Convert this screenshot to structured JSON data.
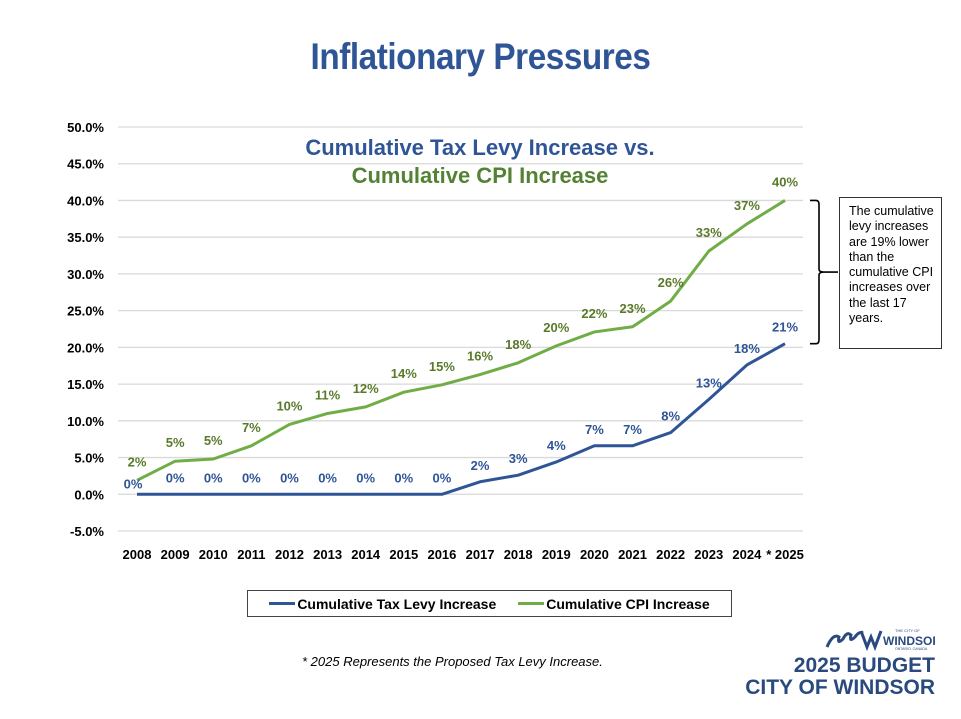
{
  "page": {
    "title": "Inflationary Pressures",
    "footnote": "* 2025 Represents the Proposed Tax Levy Increase.",
    "brand": {
      "logo_icon": "city-of-windsor-logo-icon",
      "logo_text": "WINDSOR",
      "logo_small_top": "THE CITY OF",
      "logo_small_bottom": "ONTARIO, CANADA",
      "budget_label": "2025 BUDGET",
      "city_label": "CITY OF WINDSOR"
    },
    "annotation": "The cumulative levy increases are 19% lower than the cumulative CPI increases over the last 17 years."
  },
  "colors": {
    "title": "#2f5597",
    "levy": "#2f5597",
    "cpi": "#70ad47",
    "cpi_label": "#5a7a2a",
    "grid": "#d9d9d9"
  },
  "chart_data": {
    "type": "line",
    "title_line1": "Cumulative Tax Levy Increase vs.",
    "title_line2": "Cumulative CPI Increase",
    "xlabel": "",
    "ylabel": "",
    "categories": [
      "2008",
      "2009",
      "2010",
      "2011",
      "2012",
      "2013",
      "2014",
      "2015",
      "2016",
      "2017",
      "2018",
      "2019",
      "2020",
      "2021",
      "2022",
      "2023",
      "2024",
      "* 2025"
    ],
    "ylim": [
      -5,
      50
    ],
    "yticks": [
      -5,
      0,
      5,
      10,
      15,
      20,
      25,
      30,
      35,
      40,
      45,
      50
    ],
    "ytick_labels": [
      "-5.0%",
      "0.0%",
      "5.0%",
      "10.0%",
      "15.0%",
      "20.0%",
      "25.0%",
      "30.0%",
      "35.0%",
      "40.0%",
      "45.0%",
      "50.0%"
    ],
    "grid": true,
    "legend_position": "bottom",
    "series": [
      {
        "name": "Cumulative Tax Levy Increase",
        "values": [
          0,
          0,
          0,
          0,
          0,
          0,
          0,
          0,
          0,
          1.7,
          2.6,
          4.4,
          6.6,
          6.6,
          8.4,
          12.9,
          17.6,
          20.5
        ],
        "labels": [
          "0%",
          "0%",
          "0%",
          "0%",
          "0%",
          "0%",
          "0%",
          "0%",
          "0%",
          "2%",
          "3%",
          "4%",
          "7%",
          "7%",
          "8%",
          "13%",
          "18%",
          "21%"
        ]
      },
      {
        "name": "Cumulative CPI Increase",
        "values": [
          1.9,
          4.5,
          4.8,
          6.6,
          9.5,
          11.0,
          11.9,
          13.9,
          14.9,
          16.3,
          17.9,
          20.2,
          22.1,
          22.8,
          26.3,
          33.1,
          36.8,
          40.0
        ],
        "labels": [
          "2%",
          "5%",
          "5%",
          "7%",
          "10%",
          "11%",
          "12%",
          "14%",
          "15%",
          "16%",
          "18%",
          "20%",
          "22%",
          "23%",
          "26%",
          "33%",
          "37%",
          "40%"
        ]
      }
    ],
    "annotation_bracket": {
      "from": 20.5,
      "to": 40.0
    }
  }
}
